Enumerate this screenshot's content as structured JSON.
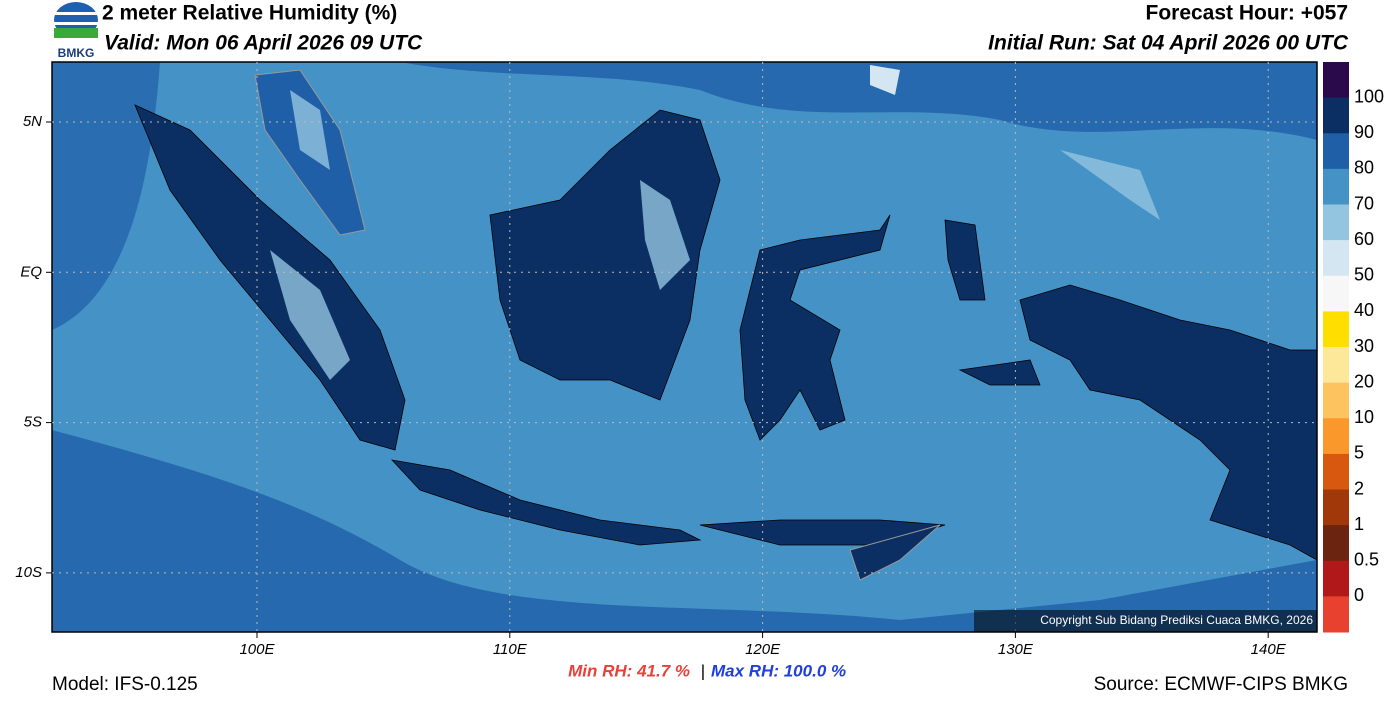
{
  "header": {
    "logo_text": "BMKG",
    "title": "2 meter Relative Humidity (%)",
    "valid": "Valid: Mon 06 April 2026 09 UTC",
    "forecast_hour": "Forecast Hour: +057",
    "initial_run": "Initial Run: Sat 04 April 2026 00 UTC"
  },
  "map": {
    "lat_labels": [
      "5N",
      "EQ",
      "5S",
      "10S"
    ],
    "lon_labels": [
      "100E",
      "110E",
      "120E",
      "130E",
      "140E"
    ],
    "copyright": "Copyright Sub Bidang Prediksi Cuaca BMKG, 2026"
  },
  "colorbar": {
    "labels": [
      100,
      90,
      80,
      70,
      60,
      50,
      40,
      30,
      20,
      10,
      5,
      2,
      1,
      0.5,
      0
    ],
    "colors": [
      "#2a0a4a",
      "#0c2f63",
      "#1f5fa8",
      "#4492c6",
      "#93c4e0",
      "#d3e6f1",
      "#f7f7f7",
      "#ffdf00",
      "#fde89a",
      "#fdc35e",
      "#fb982c",
      "#d9580f",
      "#a0380a",
      "#6b2410",
      "#b0181a",
      "#e8412f"
    ]
  },
  "footer": {
    "min_rh": "Min RH:  41.7 %",
    "separator": "|",
    "max_rh": "Max RH: 100.0 %",
    "model": "Model: IFS-0.125",
    "source": "Source: ECMWF-CIPS BMKG"
  }
}
